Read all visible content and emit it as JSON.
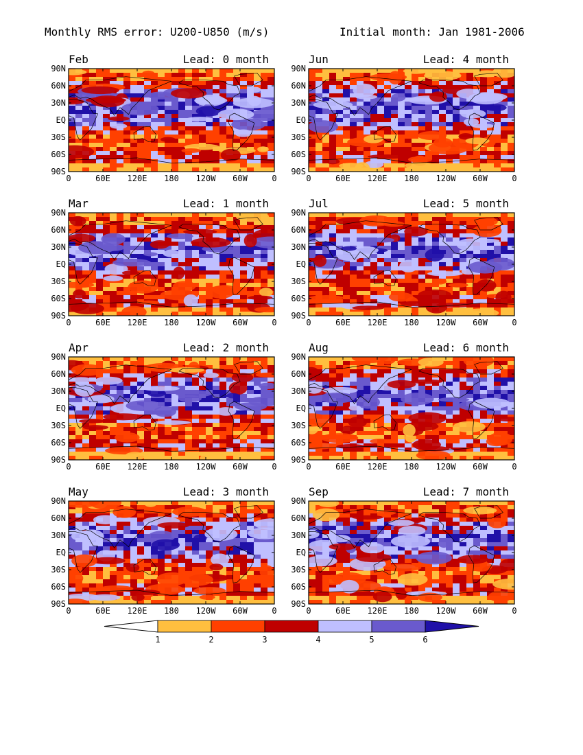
{
  "figure": {
    "title_left": "Monthly RMS error: U200-U850 (m/s)",
    "title_right": "Initial month: Jan 1981-2006"
  },
  "axes": {
    "lat_ticks": [
      "90N",
      "60N",
      "30N",
      "EQ",
      "30S",
      "60S",
      "90S"
    ],
    "lon_ticks": [
      "0",
      "60E",
      "120E",
      "180",
      "120W",
      "60W",
      "0"
    ]
  },
  "panels": [
    {
      "month": "Feb",
      "lead": "Lead: 0 month"
    },
    {
      "month": "Jun",
      "lead": "Lead: 4 month"
    },
    {
      "month": "Mar",
      "lead": "Lead: 1 month"
    },
    {
      "month": "Jul",
      "lead": "Lead: 5 month"
    },
    {
      "month": "Apr",
      "lead": "Lead: 2 month"
    },
    {
      "month": "Aug",
      "lead": "Lead: 6 month"
    },
    {
      "month": "May",
      "lead": "Lead: 3 month"
    },
    {
      "month": "Sep",
      "lead": "Lead: 7 month"
    }
  ],
  "colorbar": {
    "levels": [
      "1",
      "2",
      "3",
      "4",
      "5",
      "6"
    ],
    "colors": [
      "#ffffff",
      "#ffbf3f",
      "#ff4000",
      "#bf0000",
      "#bfbfff",
      "#6a5acd",
      "#2010a8"
    ]
  }
}
